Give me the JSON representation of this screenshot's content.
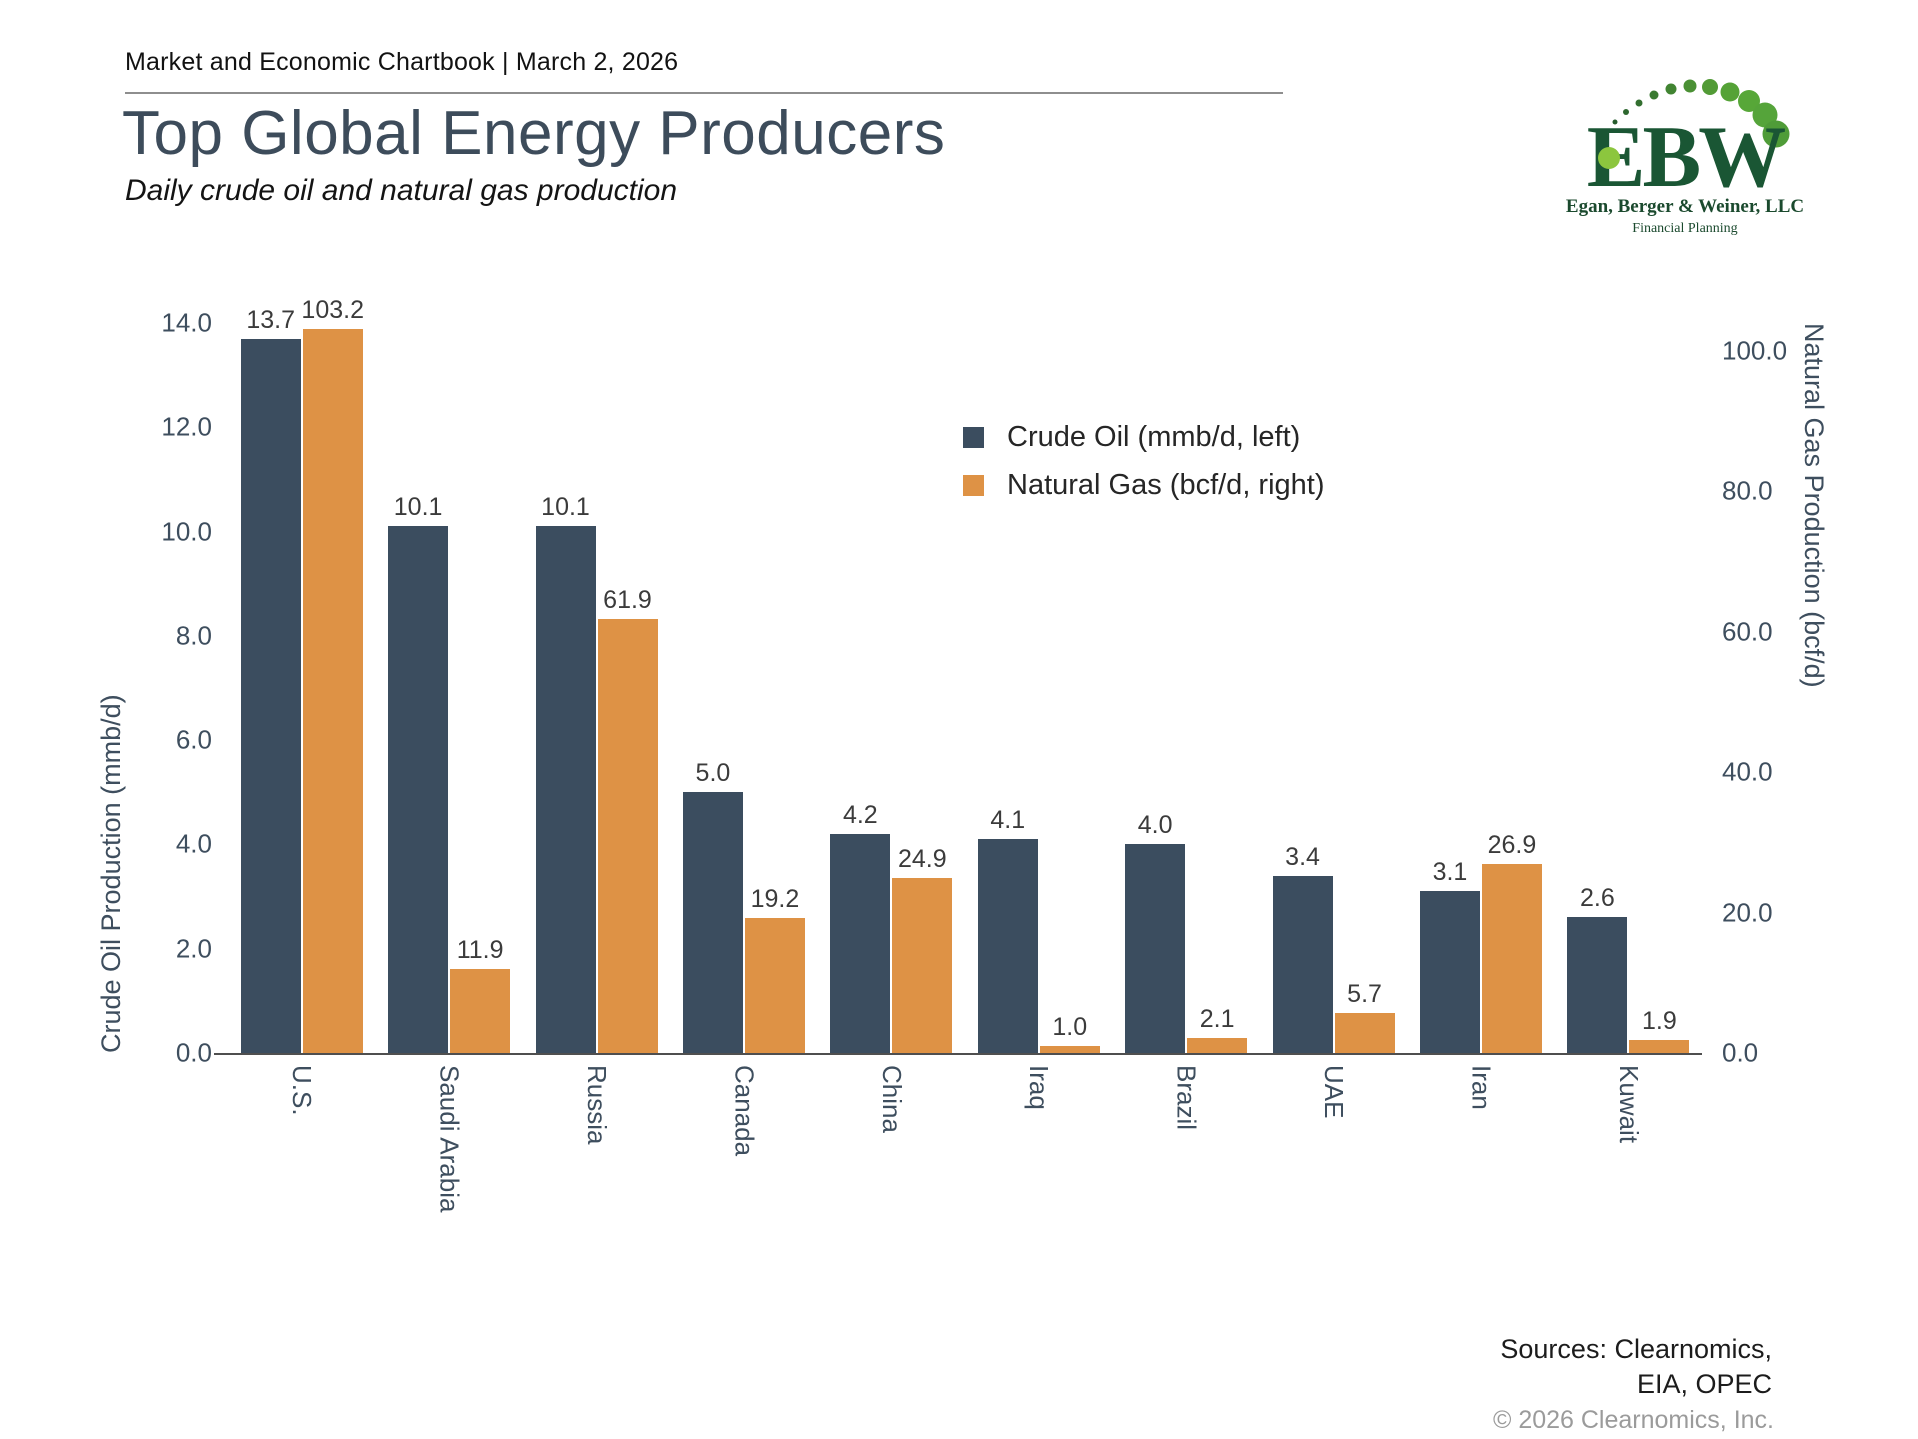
{
  "header": {
    "chartbook": "Market and Economic Chartbook | March 2, 2026"
  },
  "title": "Top Global Energy Producers",
  "subtitle": "Daily crude oil and natural gas production",
  "logo": {
    "monogram": "EBW",
    "firm": "Egan, Berger & Weiner, LLC",
    "tagline": "Financial Planning",
    "dark_green": "#1a5634",
    "light_green": "#8cc63e"
  },
  "chart_data": {
    "type": "bar",
    "categories": [
      "U.S.",
      "Saudi Arabia",
      "Russia",
      "Canada",
      "China",
      "Iraq",
      "Brazil",
      "UAE",
      "Iran",
      "Kuwait"
    ],
    "series": [
      {
        "name": "Crude Oil (mmb/d, left)",
        "axis": "left",
        "color": "#3b4d5f",
        "values": [
          13.7,
          10.1,
          10.1,
          5.0,
          4.2,
          4.1,
          4.0,
          3.4,
          3.1,
          2.6
        ]
      },
      {
        "name": "Natural Gas (bcf/d, right)",
        "axis": "right",
        "color": "#de9245",
        "values": [
          103.2,
          11.9,
          61.9,
          19.2,
          24.9,
          1.0,
          2.1,
          5.7,
          26.9,
          1.9
        ]
      }
    ],
    "left_axis": {
      "label": "Crude Oil Production (mmb/d)",
      "ticks": [
        "0.0",
        "2.0",
        "4.0",
        "6.0",
        "8.0",
        "10.0",
        "12.0",
        "14.0"
      ],
      "min": 0,
      "max": 14,
      "plot_max": 14
    },
    "right_axis": {
      "label": "Natural Gas Production (bcf/d)",
      "ticks": [
        "0.0",
        "20.0",
        "40.0",
        "60.0",
        "80.0",
        "100.0"
      ],
      "min": 0,
      "max": 100,
      "plot_max": 104
    },
    "grid": false,
    "legend_position": "upper-right-of-center",
    "value_labels": true
  },
  "footer": {
    "sources_line1": "Sources: Clearnomics,",
    "sources_line2": "EIA, OPEC",
    "copyright": "© 2026 Clearnomics, Inc."
  }
}
